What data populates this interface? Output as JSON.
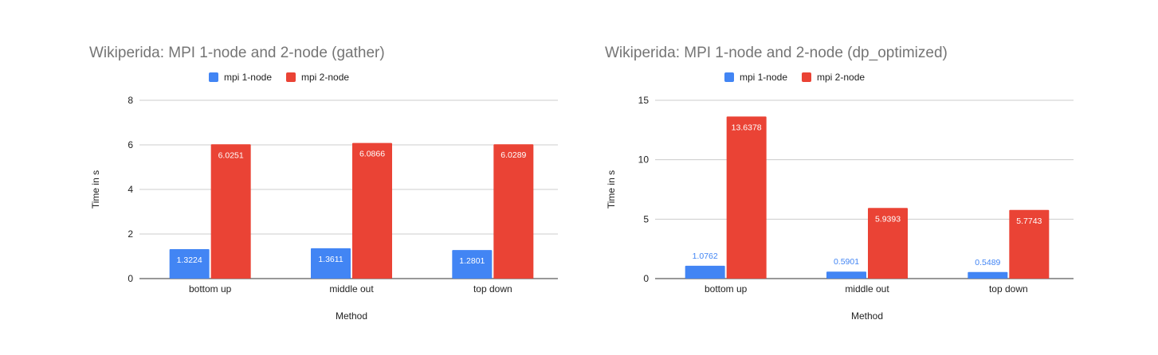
{
  "colors": {
    "mpi_1_node": "#4285f4",
    "mpi_2_node": "#ea4335",
    "grid": "#cccccc",
    "axis": "#333333"
  },
  "chart_data": [
    {
      "type": "bar",
      "title": "Wikiperida: MPI 1-node and 2-node (gather)",
      "xlabel": "Method",
      "ylabel": "Time in s",
      "categories": [
        "bottom up",
        "middle out",
        "top down"
      ],
      "ylim": [
        0,
        8
      ],
      "yticks": [
        "0",
        "2",
        "4",
        "6",
        "8"
      ],
      "legend_position": "top",
      "grid": true,
      "series": [
        {
          "name": "mpi 1-node",
          "color": "#4285f4",
          "values": [
            1.3224,
            1.3611,
            1.2801
          ],
          "labels": [
            "1.3224",
            "1.3611",
            "1.2801"
          ]
        },
        {
          "name": "mpi 2-node",
          "color": "#ea4335",
          "values": [
            6.0251,
            6.0866,
            6.0289
          ],
          "labels": [
            "6.0251",
            "6.0866",
            "6.0289"
          ]
        }
      ]
    },
    {
      "type": "bar",
      "title": "Wikiperida: MPI 1-node and 2-node (dp_optimized)",
      "xlabel": "Method",
      "ylabel": "Time in s",
      "categories": [
        "bottom up",
        "middle out",
        "top down"
      ],
      "ylim": [
        0,
        15
      ],
      "yticks": [
        "0",
        "5",
        "10",
        "15"
      ],
      "legend_position": "top",
      "grid": true,
      "series": [
        {
          "name": "mpi 1-node",
          "color": "#4285f4",
          "values": [
            1.0762,
            0.5901,
            0.5489
          ],
          "labels": [
            "1.0762",
            "0.5901",
            "0.5489"
          ]
        },
        {
          "name": "mpi 2-node",
          "color": "#ea4335",
          "values": [
            13.6378,
            5.9393,
            5.7743
          ],
          "labels": [
            "13.6378",
            "5.9393",
            "5.7743"
          ]
        }
      ]
    }
  ]
}
